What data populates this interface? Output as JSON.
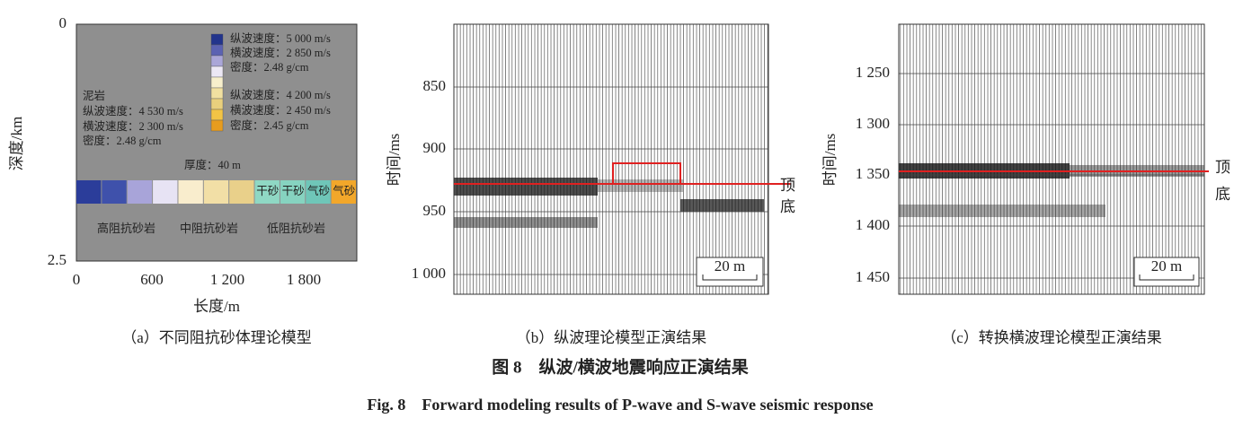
{
  "caption_cn": "图 8　纵波/横波地震响应正演结果",
  "caption_en": "Fig. 8　Forward modeling results of P-wave and S-wave seismic response",
  "panels": [
    {
      "caption": "（a）不同阻抗砂体理论模型",
      "y_label": "深度/km",
      "x_label": "长度/m",
      "y_ticks": [
        "0",
        "2.5"
      ],
      "x_ticks": [
        "0",
        "600",
        "1 200",
        "1 800"
      ],
      "legend_top": [
        "纵波速度：5 000 m/s",
        "横波速度：2 850 m/s",
        "密度：2.48 g/cm"
      ],
      "legend_bottom": [
        "纵波速度：4 200 m/s",
        "横波速度：2 450 m/s",
        "密度：2.45 g/cm"
      ],
      "mudstone": [
        "泥岩",
        "纵波速度：4 530 m/s",
        "横波速度：2 300 m/s",
        "密度：2.48 g/cm"
      ],
      "thickness": "厚度：40 m",
      "strip_labels": [
        "干砂",
        "干砂",
        "气砂",
        "气砂"
      ],
      "zone_labels": [
        "高阻抗砂岩",
        "中阻抗砂岩",
        "低阻抗砂岩"
      ]
    },
    {
      "caption": "（b）纵波理论模型正演结果",
      "y_label": "时间/ms",
      "y_ticks": [
        "850",
        "900",
        "950",
        "1 000"
      ],
      "top_label": "顶",
      "bottom_label": "底",
      "scale_bar": "20 m"
    },
    {
      "caption": "（c）转换横波理论模型正演结果",
      "y_label": "时间/ms",
      "y_ticks": [
        "1 250",
        "1 300",
        "1 350",
        "1 400",
        "1 450"
      ],
      "top_label": "顶",
      "bottom_label": "底",
      "scale_bar": "20 m"
    }
  ]
}
